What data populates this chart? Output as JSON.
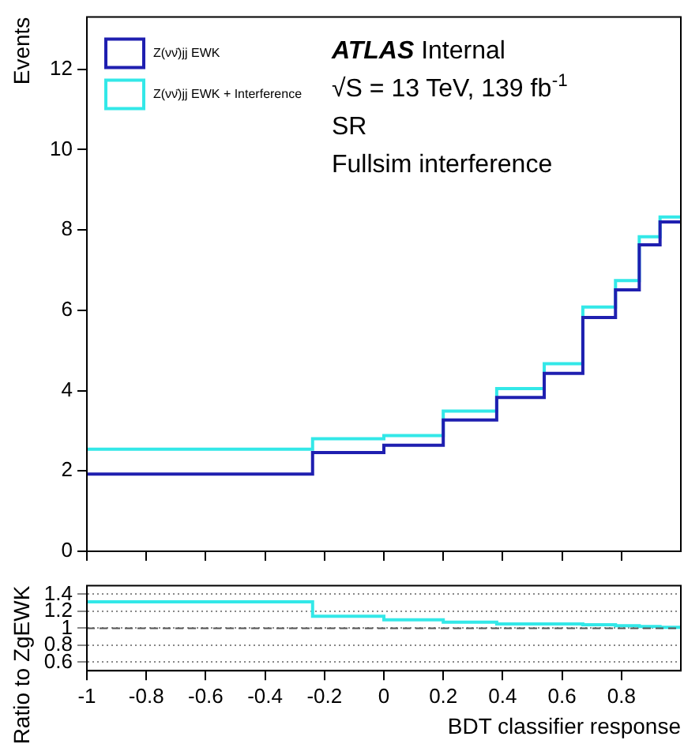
{
  "chart_data": [
    {
      "type": "histogram",
      "ylabel": "Events",
      "bins": [
        -1,
        -0.24,
        0,
        0.2,
        0.38,
        0.54,
        0.67,
        0.78,
        0.86,
        0.93,
        1
      ],
      "xlim": [
        -1,
        1
      ],
      "xticks": [
        -1,
        -0.8,
        -0.6,
        -0.4,
        -0.2,
        0,
        0.2,
        0.4,
        0.6,
        0.8
      ],
      "ylim": [
        0,
        13.3
      ],
      "yticks": [
        0,
        2,
        4,
        6,
        8,
        10,
        12
      ],
      "tick_labels": "y",
      "legend": "top left",
      "annotations": [
        "ATLAS Internal",
        "√S = 13 TeV, 139 fb$^{-1}$",
        "SR",
        "Fullsim interference"
      ],
      "series": [
        {
          "name": "Z(νν̄)jj EWK",
          "color": "#1f1fb0",
          "values": [
            1.92,
            2.46,
            2.64,
            3.27,
            3.83,
            4.43,
            5.82,
            6.51,
            7.63,
            8.2
          ]
        },
        {
          "name": "Z(νν̄)jj EWK + Interference",
          "color": "#33e8e8",
          "values": [
            2.54,
            2.8,
            2.88,
            3.49,
            4.05,
            4.67,
            6.08,
            6.74,
            7.83,
            8.32
          ]
        }
      ]
    },
    {
      "type": "histogram",
      "xlabel": "BDT classifier response",
      "ylabel": "Ratio to ZgEWK",
      "bins": [
        -1,
        -0.24,
        0,
        0.2,
        0.38,
        0.54,
        0.67,
        0.78,
        0.86,
        0.93,
        1
      ],
      "xlim": [
        -1,
        1
      ],
      "xticks": [
        -1,
        -0.8,
        -0.6,
        -0.4,
        -0.2,
        0,
        0.2,
        0.4,
        0.6,
        0.8
      ],
      "ylim": [
        0.5,
        1.5
      ],
      "yticks": [
        0.6,
        0.8,
        1,
        1.2,
        1.4
      ],
      "grid": "y",
      "ref_lines": [
        {
          "axis": "y",
          "value": 1,
          "line_style": "dashed",
          "color": "#555555"
        }
      ],
      "series": [
        {
          "color": "#33e8e8",
          "values": [
            1.31,
            1.14,
            1.1,
            1.07,
            1.05,
            1.05,
            1.04,
            1.03,
            1.02,
            1.01
          ]
        }
      ]
    }
  ]
}
